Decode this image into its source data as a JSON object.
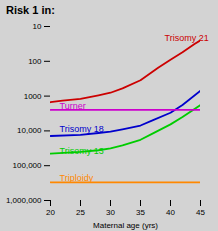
{
  "chart_data": {
    "type": "line",
    "title": "Risk 1 in:",
    "x_label": "Maternal age (yrs)",
    "log": "y",
    "grid": false,
    "xlim": [
      20,
      45
    ],
    "xticks": [
      20,
      25,
      30,
      35,
      40,
      45
    ],
    "ylim": [
      10,
      1000000
    ],
    "yticks": [
      10,
      100,
      1000,
      {
        "value": 10000,
        "label": "10,000"
      },
      {
        "value": 100000,
        "label": "100,000"
      },
      {
        "value": 1000000,
        "label": "1,000,000"
      }
    ],
    "series": [
      {
        "name": "Trisomy 21",
        "color": "#cc0000",
        "x": [
          20,
          22,
          25,
          28,
          30,
          32,
          35,
          37,
          38,
          40,
          42,
          44,
          45
        ],
        "values": [
          1500,
          1350,
          1200,
          950,
          800,
          600,
          350,
          200,
          150,
          90,
          55,
          32,
          25
        ]
      },
      {
        "name": "Trisomy 18",
        "color": "#0000cc",
        "x": [
          20,
          25,
          28,
          30,
          32,
          35,
          37,
          40,
          42,
          45
        ],
        "values": [
          14000,
          13000,
          11500,
          10500,
          9000,
          7000,
          5000,
          3000,
          1800,
          700
        ]
      },
      {
        "name": "Trisomy 13",
        "color": "#00cc00",
        "x": [
          20,
          25,
          28,
          30,
          32,
          35,
          37,
          40,
          42,
          45
        ],
        "values": [
          45000,
          40000,
          36000,
          32000,
          26000,
          18000,
          12000,
          6500,
          4000,
          1800
        ]
      },
      {
        "name": "Turner",
        "color": "#cc00cc",
        "x": [
          20,
          45
        ],
        "values": [
          2500,
          2500
        ]
      },
      {
        "name": "Triploidy",
        "color": "#ff8800",
        "x": [
          20,
          45
        ],
        "values": [
          300000,
          300000
        ]
      }
    ],
    "annotations": [
      {
        "text": "Trisomy 21",
        "x": 39.0,
        "y": 22,
        "color": "#cc0000"
      },
      {
        "text": "Turner",
        "x": 21.5,
        "y": 2000,
        "color": "#cc00cc"
      },
      {
        "text": "Trisomy 18",
        "x": 21.5,
        "y": 9000,
        "color": "#0000cc"
      },
      {
        "text": "Trisomy 13",
        "x": 21.5,
        "y": 38000,
        "color": "#00cc00"
      },
      {
        "text": "Triploidy",
        "x": 21.5,
        "y": 220000,
        "color": "#ff8800"
      }
    ]
  }
}
